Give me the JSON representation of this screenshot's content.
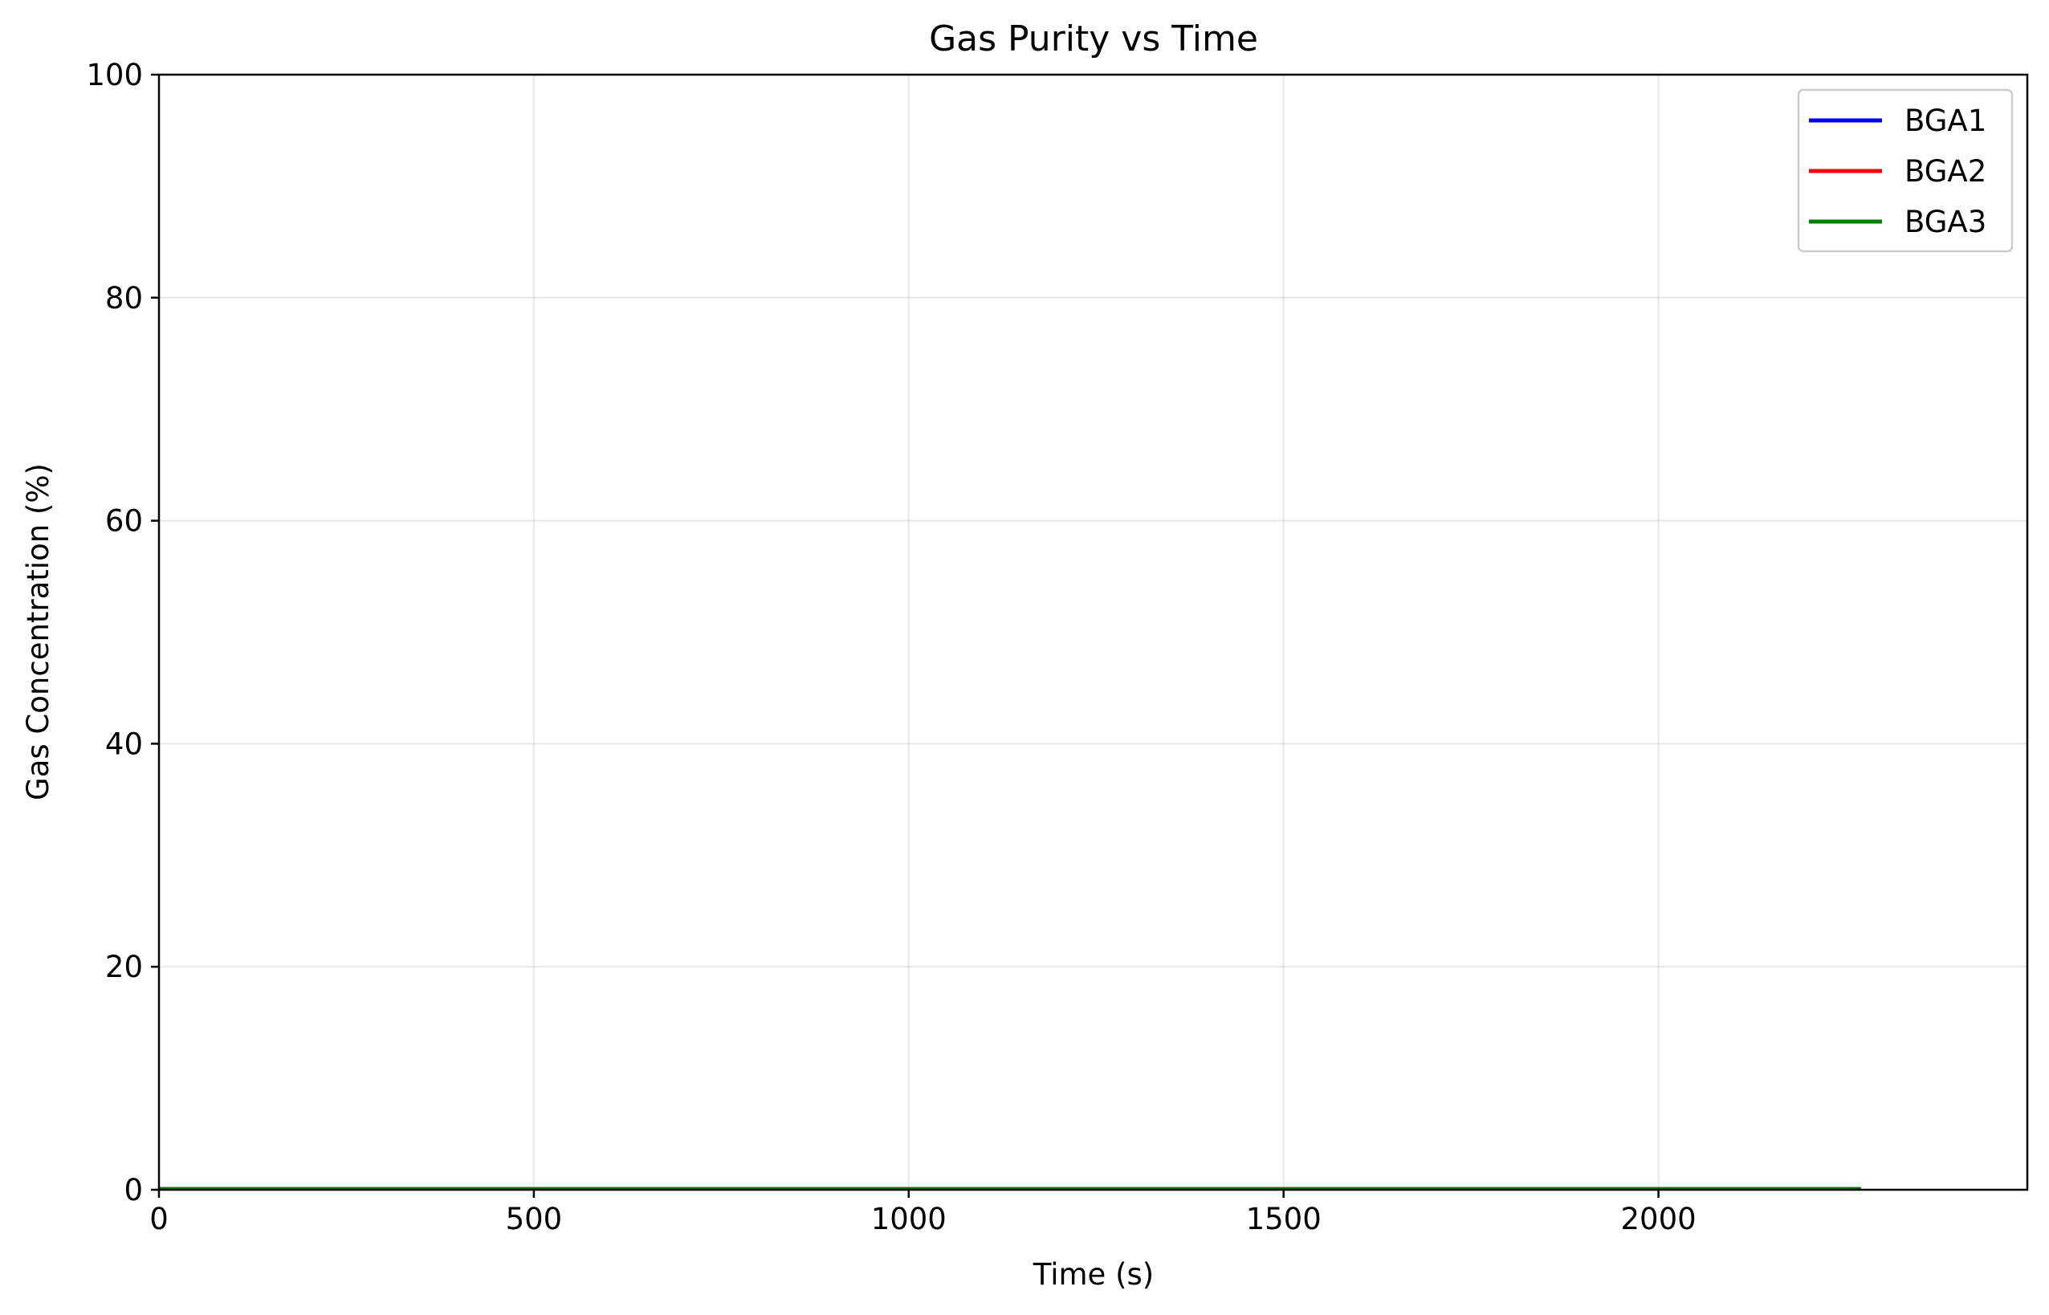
{
  "chart_data": {
    "type": "line",
    "title": "Gas Purity vs Time",
    "xlabel": "Time (s)",
    "ylabel": "Gas Concentration (%)",
    "xlim": [
      0,
      2492
    ],
    "ylim": [
      0,
      100
    ],
    "x_ticks": [
      0,
      500,
      1000,
      1500,
      2000
    ],
    "y_ticks": [
      0,
      20,
      40,
      60,
      80,
      100
    ],
    "grid": true,
    "legend_position": "top-right",
    "series": [
      {
        "name": "BGA1",
        "color": "#0000ff",
        "x": [
          0,
          2270
        ],
        "y": [
          0.1,
          0.1
        ]
      },
      {
        "name": "BGA2",
        "color": "#ff0000",
        "x": [
          0,
          2270
        ],
        "y": [
          0.1,
          0.1
        ]
      },
      {
        "name": "BGA3",
        "color": "#008000",
        "x": [
          0,
          2270
        ],
        "y": [
          0.1,
          0.1
        ]
      }
    ]
  }
}
